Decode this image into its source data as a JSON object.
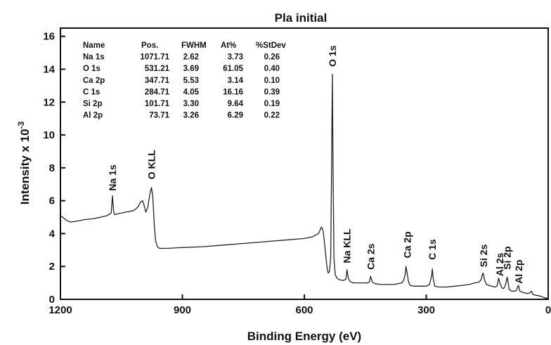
{
  "chart_data": {
    "type": "line",
    "title": "Pla initial",
    "xlabel": "Binding Energy (eV)",
    "ylabel": "Intensity x 10",
    "ylabel_exponent": "-3",
    "xlim": [
      1200,
      0
    ],
    "ylim": [
      0,
      16.5
    ],
    "x_ticks": [
      1200,
      900,
      600,
      300,
      0
    ],
    "y_ticks": [
      0,
      2,
      4,
      6,
      8,
      10,
      12,
      14,
      16
    ],
    "grid": false,
    "legend": "none",
    "line_color": "#222222",
    "series": [
      {
        "x": [
          1200,
          1195,
          1185,
          1175,
          1160,
          1140,
          1120,
          1100,
          1085,
          1075,
          1072,
          1069,
          1066,
          1060,
          1040,
          1020,
          1010,
          1003,
          998,
          995,
          990,
          985,
          980,
          976,
          973,
          969,
          966,
          963,
          960,
          955,
          940,
          900,
          850,
          800,
          750,
          700,
          650,
          600,
          580,
          565,
          558,
          554,
          551,
          547,
          544,
          541,
          538,
          535,
          533,
          531,
          529,
          527,
          524,
          520,
          515,
          505,
          498,
          495,
          492,
          488,
          480,
          470,
          455,
          445,
          440,
          437,
          433,
          425,
          410,
          395,
          380,
          370,
          360,
          355,
          352,
          350,
          347,
          344,
          340,
          330,
          315,
          300,
          292,
          287,
          285,
          283,
          279,
          270,
          250,
          230,
          210,
          195,
          180,
          170,
          165,
          162,
          160,
          157,
          152,
          140,
          130,
          126,
          124,
          122,
          119,
          114,
          110,
          106,
          103,
          101,
          99,
          96,
          90,
          80,
          78,
          75,
          73,
          70,
          60,
          50,
          45,
          43,
          41,
          38,
          30,
          20,
          10,
          0
        ],
        "y": [
          5.1,
          5.0,
          4.8,
          4.7,
          4.75,
          4.85,
          4.9,
          5.0,
          5.1,
          5.25,
          6.3,
          5.3,
          5.15,
          5.2,
          5.3,
          5.4,
          5.6,
          5.9,
          6.0,
          5.8,
          5.3,
          5.6,
          6.4,
          6.8,
          6.3,
          4.5,
          3.6,
          3.3,
          3.15,
          3.1,
          3.1,
          3.15,
          3.2,
          3.3,
          3.4,
          3.5,
          3.6,
          3.7,
          3.8,
          4.0,
          4.4,
          4.2,
          3.6,
          2.6,
          1.9,
          1.6,
          1.7,
          2.6,
          7.5,
          13.7,
          7.0,
          2.5,
          1.5,
          1.3,
          1.2,
          1.15,
          1.2,
          1.8,
          1.3,
          1.1,
          1.0,
          1.0,
          1.0,
          1.0,
          1.05,
          1.4,
          1.05,
          0.95,
          0.9,
          0.9,
          0.9,
          0.95,
          1.0,
          1.2,
          1.5,
          2.0,
          1.6,
          1.1,
          0.85,
          0.8,
          0.8,
          0.8,
          0.9,
          1.4,
          1.85,
          1.3,
          0.8,
          0.75,
          0.75,
          0.8,
          0.85,
          0.9,
          1.0,
          1.05,
          1.2,
          1.5,
          1.6,
          1.2,
          0.9,
          0.8,
          0.75,
          0.8,
          1.0,
          1.3,
          1.0,
          0.7,
          0.65,
          0.8,
          1.1,
          1.35,
          1.1,
          0.6,
          0.5,
          0.5,
          0.55,
          0.75,
          0.85,
          0.5,
          0.4,
          0.35,
          0.4,
          0.45,
          0.5,
          0.3,
          0.25,
          0.2,
          0.1,
          0.05
        ]
      }
    ],
    "peak_labels": [
      {
        "text": "Na 1s",
        "x": 1072,
        "y": 6.6
      },
      {
        "text": "O KLL",
        "x": 976,
        "y": 7.3
      },
      {
        "text": "O 1s",
        "x": 531,
        "y": 14.15
      },
      {
        "text": "Na KLL",
        "x": 495,
        "y": 2.2
      },
      {
        "text": "Ca 2s",
        "x": 437,
        "y": 1.8
      },
      {
        "text": "Ca 2p",
        "x": 347,
        "y": 2.5
      },
      {
        "text": "C 1s",
        "x": 285,
        "y": 2.4
      },
      {
        "text": "Si 2s",
        "x": 159,
        "y": 1.95
      },
      {
        "text": "Al 2s",
        "x": 119,
        "y": 1.4
      },
      {
        "text": "Si 2p",
        "x": 101,
        "y": 1.8
      },
      {
        "text": "Al 2p",
        "x": 73,
        "y": 0.95
      }
    ],
    "quant_table": {
      "headers": [
        "Name",
        "Pos.",
        "FWHM",
        "At%",
        "%StDev"
      ],
      "rows": [
        [
          "Na 1s",
          "1071.71",
          "2.62",
          "3.73",
          "0.26"
        ],
        [
          "O 1s",
          "531.21",
          "3.69",
          "61.05",
          "0.40"
        ],
        [
          "Ca 2p",
          "347.71",
          "5.53",
          "3.14",
          "0.10"
        ],
        [
          "C 1s",
          "284.71",
          "4.05",
          "16.16",
          "0.39"
        ],
        [
          "Si 2p",
          "101.71",
          "3.30",
          "9.64",
          "0.19"
        ],
        [
          "Al 2p",
          "73.71",
          "3.26",
          "6.29",
          "0.22"
        ]
      ]
    }
  }
}
